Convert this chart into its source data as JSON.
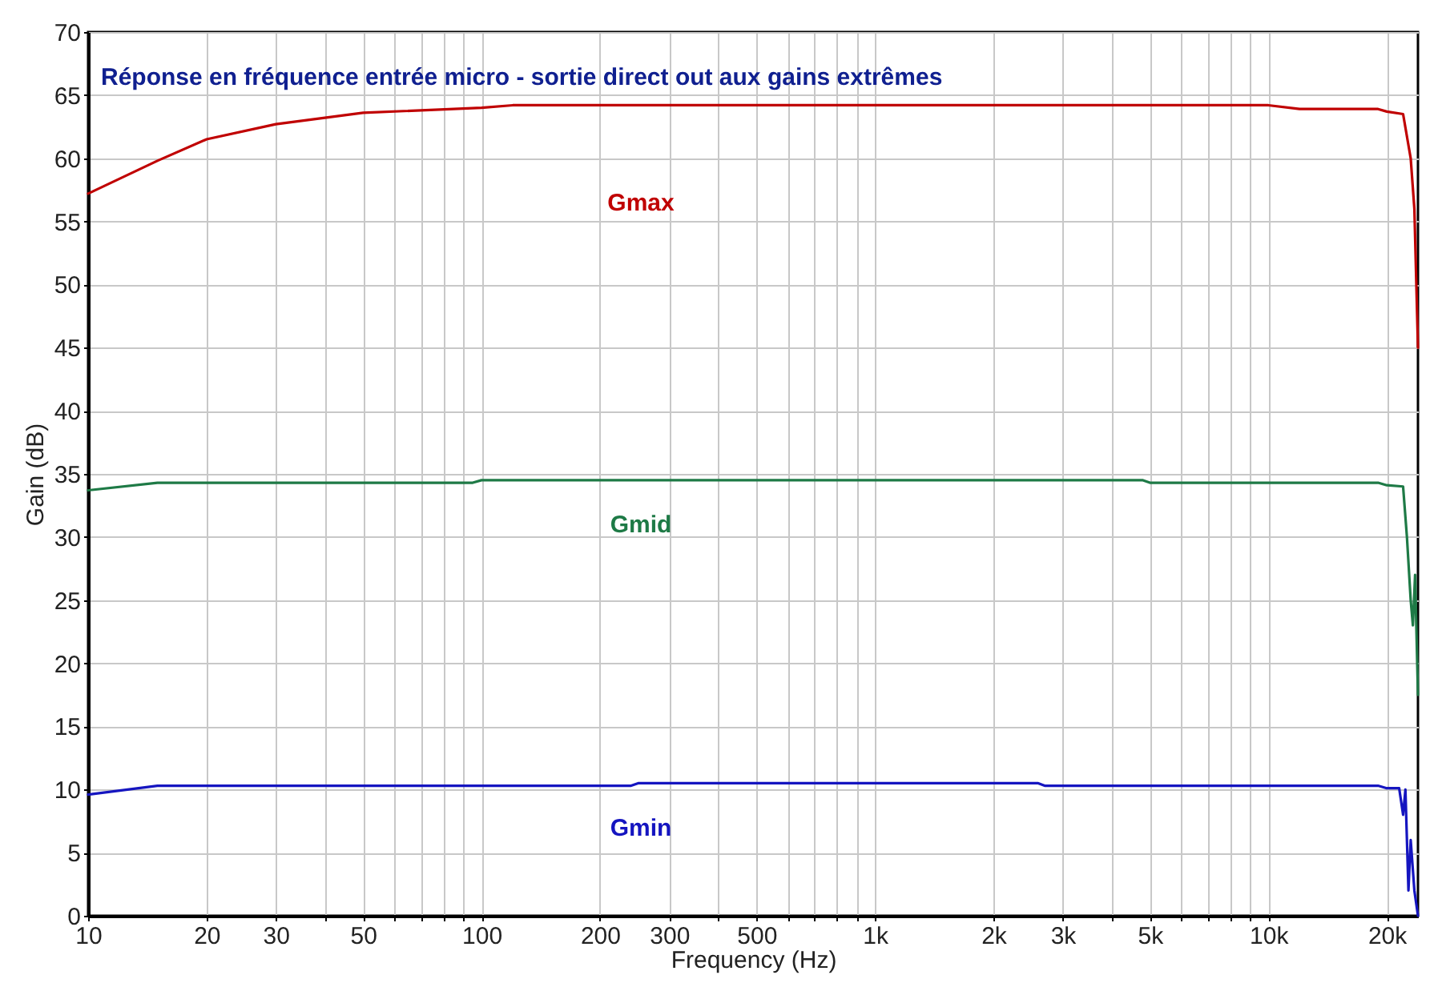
{
  "chart_data": {
    "type": "line",
    "title": "Réponse en fréquence entrée micro - sortie direct out aux gains extrêmes",
    "xlabel": "Frequency (Hz)",
    "ylabel": "Gain (dB)",
    "log": "x",
    "grid": true,
    "legend": false,
    "xlim": [
      10,
      24000
    ],
    "ylim": [
      0,
      70
    ],
    "xticks": [
      10,
      20,
      30,
      {
        "value": 40,
        "label": null
      },
      50,
      {
        "value": 60,
        "label": null
      },
      {
        "value": 70,
        "label": null
      },
      {
        "value": 80,
        "label": null
      },
      {
        "value": 90,
        "label": null
      },
      100,
      200,
      300,
      {
        "value": 400,
        "label": null
      },
      500,
      {
        "value": 600,
        "label": null
      },
      {
        "value": 700,
        "label": null
      },
      {
        "value": 800,
        "label": null
      },
      {
        "value": 900,
        "label": null
      },
      {
        "value": 1000,
        "label": "1k"
      },
      {
        "value": 2000,
        "label": "2k"
      },
      {
        "value": 3000,
        "label": "3k"
      },
      {
        "value": 4000,
        "label": null
      },
      {
        "value": 5000,
        "label": "5k"
      },
      {
        "value": 6000,
        "label": null
      },
      {
        "value": 7000,
        "label": null
      },
      {
        "value": 8000,
        "label": null
      },
      {
        "value": 9000,
        "label": null
      },
      {
        "value": 10000,
        "label": "10k"
      },
      {
        "value": 20000,
        "label": "20k"
      }
    ],
    "yticks": [
      0,
      5,
      10,
      15,
      20,
      25,
      30,
      35,
      40,
      45,
      50,
      55,
      60,
      65,
      70
    ],
    "series": [
      {
        "name": "Gmax",
        "color": "#c00000",
        "x": [
          10,
          15,
          20,
          30,
          50,
          100,
          120,
          1000,
          10000,
          12000,
          19000,
          20000,
          22000,
          23000,
          23500,
          24000
        ],
        "values": [
          57.2,
          59.8,
          61.5,
          62.7,
          63.6,
          64,
          64.2,
          64.2,
          64.2,
          63.9,
          63.9,
          63.7,
          63.5,
          60,
          56,
          45
        ]
      },
      {
        "name": "Gmid",
        "color": "#1e7a46",
        "x": [
          10,
          15,
          95,
          100,
          1000,
          4800,
          5000,
          19000,
          20000,
          22000,
          22500,
          23000,
          23300,
          23600,
          24000
        ],
        "values": [
          33.7,
          34.3,
          34.3,
          34.5,
          34.5,
          34.5,
          34.3,
          34.3,
          34.1,
          34,
          30,
          25,
          23,
          27,
          17.5
        ]
      },
      {
        "name": "Gmin",
        "color": "#1515c0",
        "x": [
          10,
          15,
          240,
          250,
          1000,
          2600,
          2700,
          19000,
          20000,
          21500,
          22000,
          22300,
          22700,
          23000,
          23500,
          24000
        ],
        "values": [
          9.6,
          10.3,
          10.3,
          10.5,
          10.5,
          10.5,
          10.3,
          10.3,
          10.1,
          10.1,
          8,
          10,
          2,
          6,
          2,
          0
        ]
      }
    ]
  }
}
